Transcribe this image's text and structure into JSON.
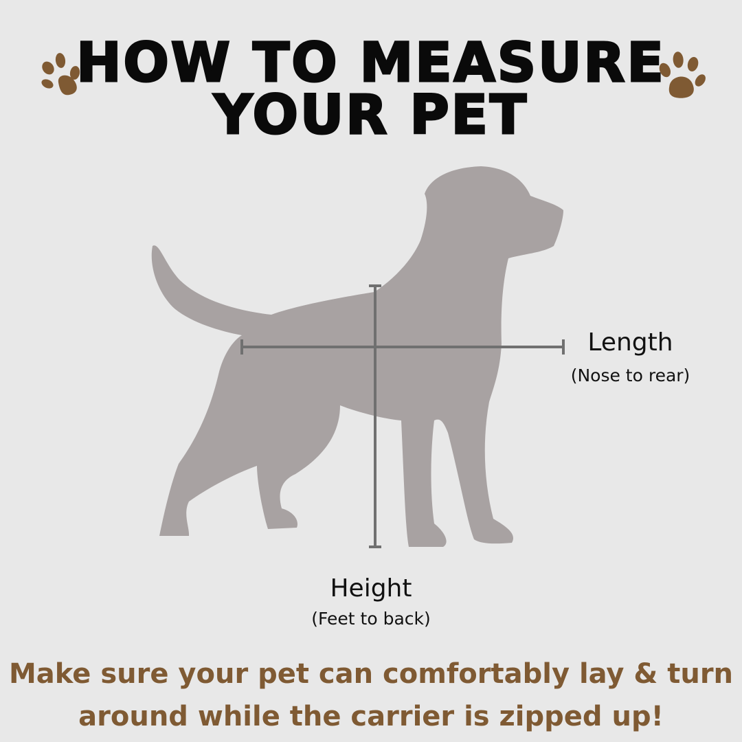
{
  "title": {
    "line1": "HOW TO MEASURE",
    "line2": "YOUR PET"
  },
  "icons": [
    "paw-print-icon",
    "paw-print-icon"
  ],
  "colors": {
    "background": "#e8e8e8",
    "accent_brown": "#7f5a33",
    "silhouette": "#a8a2a2",
    "measure_line": "#707070"
  },
  "length": {
    "label": "Length",
    "sub": "(Nose to rear)"
  },
  "height": {
    "label": "Height",
    "sub": "(Feet to back)"
  },
  "note": {
    "line1": "Make sure your pet can comfortably lay & turn",
    "line2": "around while the carrier is zipped up!"
  }
}
